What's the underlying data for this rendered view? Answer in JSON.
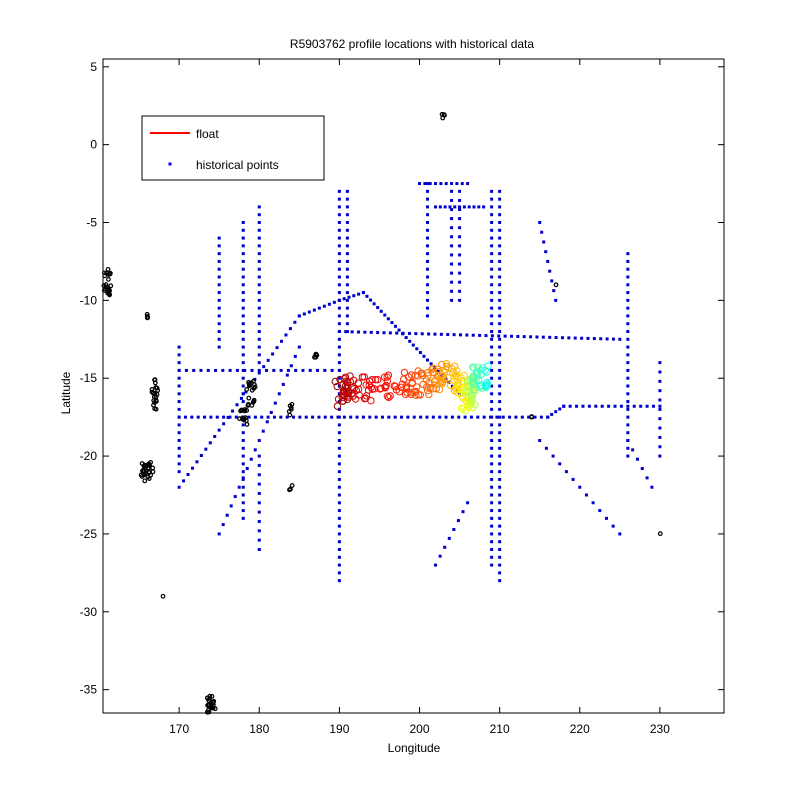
{
  "chart_data": {
    "type": "scatter",
    "title": "R5903762 profile locations with historical data",
    "xlabel": "Longitude",
    "ylabel": "Latitude",
    "xlim": [
      160.5,
      238
    ],
    "ylim": [
      -36.5,
      5.5
    ],
    "xticks": [
      170,
      180,
      190,
      200,
      210,
      220,
      230
    ],
    "yticks": [
      5,
      0,
      -5,
      -10,
      -15,
      -20,
      -25,
      -30,
      -35
    ],
    "grid": false,
    "legend": {
      "position": "top-left",
      "entries": [
        {
          "label": "float",
          "marker": "line",
          "color": "#ff0000"
        },
        {
          "label": "historical points",
          "marker": "dot",
          "color": "#0000ff"
        }
      ]
    },
    "series": [
      {
        "name": "historical points",
        "color": "#0000cc",
        "lines": [
          {
            "from": [
              190,
              -3
            ],
            "to": [
              190,
              -28
            ],
            "step": 0.5
          },
          {
            "from": [
              191,
              -3
            ],
            "to": [
              191,
              -12
            ],
            "step": 0.5
          },
          {
            "from": [
              210,
              -3
            ],
            "to": [
              210,
              -28
            ],
            "step": 0.5
          },
          {
            "from": [
              209,
              -3
            ],
            "to": [
              209,
              -27
            ],
            "step": 0.5
          },
          {
            "from": [
              201,
              -2.5
            ],
            "to": [
              201,
              -11
            ],
            "step": 0.5
          },
          {
            "from": [
              204,
              -3
            ],
            "to": [
              204,
              -10
            ],
            "step": 0.6
          },
          {
            "from": [
              205,
              -3
            ],
            "to": [
              205,
              -10
            ],
            "step": 0.6
          },
          {
            "from": [
              178,
              -5
            ],
            "to": [
              178,
              -16
            ],
            "step": 0.5
          },
          {
            "from": [
              180,
              -4
            ],
            "to": [
              180,
              -14
            ],
            "step": 0.5
          },
          {
            "from": [
              175,
              -6
            ],
            "to": [
              175,
              -13
            ],
            "step": 0.5
          },
          {
            "from": [
              178,
              -16
            ],
            "to": [
              178,
              -24
            ],
            "step": 0.5
          },
          {
            "from": [
              170,
              -13
            ],
            "to": [
              170,
              -21
            ],
            "step": 0.5
          },
          {
            "from": [
              180,
              -20
            ],
            "to": [
              180,
              -26
            ],
            "step": 0.6
          },
          {
            "from": [
              226,
              -7
            ],
            "to": [
              226,
              -20
            ],
            "step": 0.5
          },
          {
            "from": [
              230,
              -14
            ],
            "to": [
              230,
              -20
            ],
            "step": 0.6
          },
          {
            "from": [
              170,
              -14.5
            ],
            "to": [
              190,
              -14.5
            ],
            "step": 0.9
          },
          {
            "from": [
              170,
              -17.5
            ],
            "to": [
              216,
              -17.5
            ],
            "step": 0.8
          },
          {
            "from": [
              216,
              -17.5
            ],
            "to": [
              218,
              -16.8
            ],
            "step": 0.6
          },
          {
            "from": [
              218,
              -16.8
            ],
            "to": [
              230,
              -16.8
            ],
            "step": 0.8
          },
          {
            "from": [
              190,
              -12
            ],
            "to": [
              225,
              -12.5
            ],
            "step": 0.8
          },
          {
            "from": [
              170,
              -22
            ],
            "to": [
              185,
              -11
            ],
            "step": 0.7
          },
          {
            "from": [
              185,
              -11
            ],
            "to": [
              190,
              -10
            ],
            "step": 0.6
          },
          {
            "from": [
              190,
              -10
            ],
            "to": [
              193,
              -9.5
            ],
            "step": 0.6
          },
          {
            "from": [
              193,
              -9.5
            ],
            "to": [
              205,
              -16
            ],
            "step": 0.5
          },
          {
            "from": [
              175,
              -25
            ],
            "to": [
              185,
              -13
            ],
            "step": 0.8
          },
          {
            "from": [
              200,
              -2.5
            ],
            "to": [
              206,
              -2.5
            ],
            "step": 0.7
          },
          {
            "from": [
              202,
              -4
            ],
            "to": [
              208,
              -4
            ],
            "step": 0.6
          },
          {
            "from": [
              215,
              -5
            ],
            "to": [
              217,
              -10
            ],
            "step": 0.7
          },
          {
            "from": [
              215,
              -19
            ],
            "to": [
              225,
              -25
            ],
            "step": 1.0
          },
          {
            "from": [
              206,
              -23
            ],
            "to": [
              202,
              -27
            ],
            "step": 0.8
          },
          {
            "from": [
              226,
              -19
            ],
            "to": [
              229,
              -22
            ],
            "step": 0.8
          }
        ]
      },
      {
        "name": "black historical points",
        "color": "#000000",
        "clusters": [
          {
            "center": [
              161,
              -9
            ],
            "spread": [
              1.0,
              2.0
            ],
            "n": 22
          },
          {
            "center": [
              166,
              -11
            ],
            "spread": [
              0.3,
              0.3
            ],
            "n": 4
          },
          {
            "center": [
              167,
              -16
            ],
            "spread": [
              0.8,
              2.0
            ],
            "n": 20
          },
          {
            "center": [
              166,
              -21
            ],
            "spread": [
              1.5,
              1.2
            ],
            "n": 30
          },
          {
            "center": [
              174,
              -36
            ],
            "spread": [
              1.2,
              1.2
            ],
            "n": 25
          },
          {
            "center": [
              178,
              -17.5
            ],
            "spread": [
              1.0,
              1.0
            ],
            "n": 14
          },
          {
            "center": [
              179,
              -16
            ],
            "spread": [
              1.2,
              1.8
            ],
            "n": 18
          },
          {
            "center": [
              184,
              -17
            ],
            "spread": [
              0.6,
              0.8
            ],
            "n": 6
          },
          {
            "center": [
              187,
              -13.5
            ],
            "spread": [
              0.6,
              0.4
            ],
            "n": 6
          },
          {
            "center": [
              203,
              1.8
            ],
            "spread": [
              0.4,
              0.3
            ],
            "n": 4
          },
          {
            "center": [
              168,
              -29
            ],
            "spread": [
              0.1,
              0.1
            ],
            "n": 1
          },
          {
            "center": [
              230,
              -25
            ],
            "spread": [
              0.1,
              0.1
            ],
            "n": 1
          },
          {
            "center": [
              214,
              -17.5
            ],
            "spread": [
              0.2,
              0.2
            ],
            "n": 2
          },
          {
            "center": [
              184,
              -22
            ],
            "spread": [
              0.5,
              0.5
            ],
            "n": 3
          },
          {
            "center": [
              217,
              -9
            ],
            "spread": [
              0.1,
              0.1
            ],
            "n": 1
          }
        ]
      },
      {
        "name": "float",
        "color_scale": [
          "#8b0000",
          "#ff0000",
          "#ff8000",
          "#ffff00",
          "#00ffff"
        ],
        "track": [
          [
            190,
            -16
          ],
          [
            191,
            -15.5
          ],
          [
            194,
            -15.7
          ],
          [
            198,
            -15.3
          ],
          [
            201,
            -15.3
          ],
          [
            203,
            -14.7
          ],
          [
            205,
            -15.5
          ],
          [
            206,
            -16.5
          ],
          [
            207,
            -15
          ],
          [
            208.5,
            -14.8
          ]
        ]
      }
    ]
  }
}
